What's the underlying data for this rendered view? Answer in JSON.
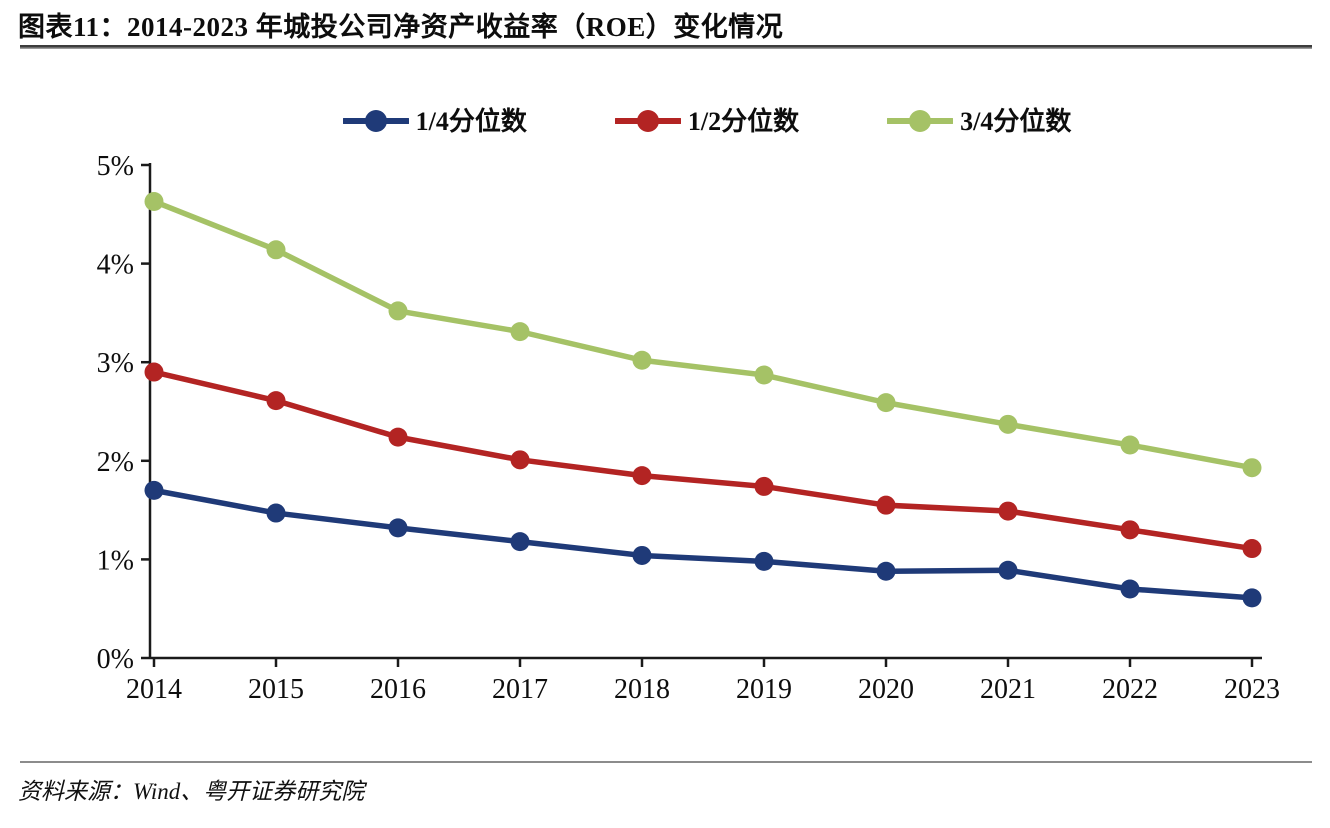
{
  "figure": {
    "title": "图表11：2014-2023 年城投公司净资产收益率（ROE）变化情况",
    "source": "资料来源：Wind、粤开证券研究院"
  },
  "colors": {
    "quartile_1": "#1f3a78",
    "quartile_2": "#b32423",
    "quartile_3": "#a5c266",
    "axis": "#1a1a1a",
    "title_rule": "#3d3d3d",
    "bottom_rule": "#8c8c8c"
  },
  "chart_data": {
    "type": "line",
    "title": "2014-2023 年城投公司净资产收益率（ROE）变化情况",
    "categories": [
      "2014",
      "2015",
      "2016",
      "2017",
      "2018",
      "2019",
      "2020",
      "2021",
      "2022",
      "2023"
    ],
    "series": [
      {
        "name": "1/4分位数",
        "color": "#1f3a78",
        "values": [
          1.7,
          1.47,
          1.32,
          1.18,
          1.04,
          0.98,
          0.88,
          0.89,
          0.7,
          0.61
        ]
      },
      {
        "name": "1/2分位数",
        "color": "#b32423",
        "values": [
          2.9,
          2.61,
          2.24,
          2.01,
          1.85,
          1.74,
          1.55,
          1.49,
          1.3,
          1.11
        ]
      },
      {
        "name": "3/4分位数",
        "color": "#a5c266",
        "values": [
          4.63,
          4.14,
          3.52,
          3.31,
          3.02,
          2.87,
          2.59,
          2.37,
          2.16,
          1.93
        ]
      }
    ],
    "xlabel": "",
    "ylabel": "",
    "ylim": [
      0,
      5
    ],
    "yticks": [
      "0%",
      "1%",
      "2%",
      "3%",
      "4%",
      "5%"
    ],
    "grid": false,
    "legend_position": "top-center"
  }
}
